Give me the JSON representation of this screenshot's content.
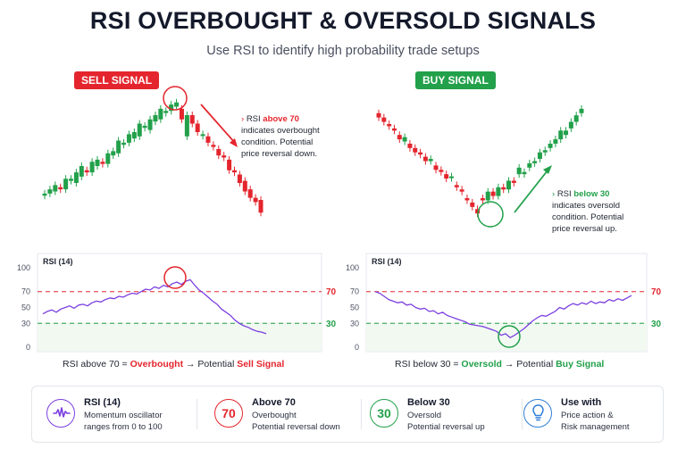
{
  "header": {
    "title": "RSI OVERBOUGHT & OVERSOLD SIGNALS",
    "subtitle": "Use RSI to identify high probability trade setups"
  },
  "colors": {
    "red": "#e4252d",
    "green": "#22a04a",
    "rsi_line": "#7b3fe0",
    "blue": "#2f7fd8"
  },
  "sell_panel": {
    "badge": "SELL SIGNAL",
    "note": {
      "prefix": "RSI ",
      "highlight": "above 70",
      "line2": "indicates overbought",
      "line3": "condition. Potential",
      "line4": "price reversal down."
    },
    "caption": {
      "prefix": "RSI above 70 = ",
      "word": "Overbought",
      "mid": " → Potential ",
      "signal": "Sell Signal"
    }
  },
  "buy_panel": {
    "badge": "BUY SIGNAL",
    "note": {
      "prefix": "RSI ",
      "highlight": "below 30",
      "line2": "indicates oversold",
      "line3": "condition. Potential",
      "line4": "price reversal up."
    },
    "caption": {
      "prefix": "RSI below 30 = ",
      "word": "Oversold",
      "mid": " → Potential ",
      "signal": "Buy Signal"
    }
  },
  "legend": [
    {
      "icon": "wave-icon",
      "title": "RSI (14)",
      "line1": "Momentum oscillator",
      "line2": "ranges from 0 to 100"
    },
    {
      "icon_text": "70",
      "title": "Above 70",
      "line1": "Overbought",
      "line2": "Potential reversal down"
    },
    {
      "icon_text": "30",
      "title": "Below 30",
      "line1": "Oversold",
      "line2": "Potential reversal up"
    },
    {
      "icon": "lightbulb-icon",
      "title": "Use with",
      "line1": "Price action &",
      "line2": "Risk management"
    }
  ],
  "chart_data": [
    {
      "type": "candlestick",
      "panel": "sell",
      "open": [
        2,
        3,
        4,
        6,
        5,
        9,
        8,
        11,
        14,
        13,
        16,
        18,
        17,
        21,
        22,
        26,
        27,
        29,
        30,
        34,
        33,
        37,
        38,
        41,
        42,
        44,
        43,
        30,
        40,
        36,
        31,
        30,
        26,
        24,
        21,
        19,
        14,
        12,
        9,
        5,
        1,
        0
      ],
      "close": [
        3,
        5,
        7,
        5,
        10,
        10,
        13,
        16,
        13,
        18,
        19,
        17,
        22,
        23,
        28,
        27,
        31,
        32,
        36,
        35,
        38,
        40,
        43,
        42,
        45,
        46,
        38,
        40,
        36,
        32,
        31,
        27,
        25,
        21,
        20,
        14,
        13,
        8,
        4,
        1,
        -1,
        -6
      ]
    },
    {
      "type": "line",
      "title": "RSI (14)",
      "panel": "sell",
      "ylim": [
        0,
        100
      ],
      "yticks": [
        0,
        30,
        50,
        70,
        100
      ],
      "levels": [
        {
          "value": 70,
          "label": "70"
        },
        {
          "value": 30,
          "label": "30"
        }
      ],
      "values": [
        42,
        45,
        47,
        44,
        48,
        50,
        52,
        49,
        53,
        54,
        52,
        56,
        58,
        57,
        60,
        62,
        61,
        64,
        63,
        66,
        68,
        67,
        70,
        73,
        72,
        76,
        74,
        78,
        76,
        80,
        82,
        79,
        83,
        85,
        78,
        72,
        68,
        63,
        58,
        54,
        48,
        44,
        40,
        34,
        30,
        27,
        25,
        22,
        20,
        19,
        17
      ]
    },
    {
      "type": "candlestick",
      "panel": "buy",
      "open": [
        44,
        42,
        39,
        37,
        34,
        31,
        30,
        28,
        26,
        24,
        22,
        20,
        18,
        16,
        15,
        11,
        9,
        5,
        3,
        0,
        5,
        4,
        8,
        6,
        10,
        9,
        13,
        16,
        16,
        19,
        21,
        23,
        26,
        28,
        30,
        32,
        34,
        37,
        40,
        44
      ],
      "close": [
        42,
        40,
        38,
        36,
        32,
        33,
        28,
        26,
        25,
        22,
        23,
        18,
        17,
        14,
        15,
        10,
        8,
        4,
        1,
        -2,
        4,
        8,
        6,
        10,
        9,
        13,
        12,
        19,
        17,
        21,
        22,
        26,
        27,
        30,
        32,
        36,
        36,
        40,
        43,
        46
      ]
    },
    {
      "type": "line",
      "title": "RSI (14)",
      "panel": "buy",
      "ylim": [
        0,
        100
      ],
      "yticks": [
        0,
        30,
        50,
        70,
        100
      ],
      "levels": [
        {
          "value": 70,
          "label": "70"
        },
        {
          "value": 30,
          "label": "30"
        }
      ],
      "values": [
        70,
        68,
        64,
        60,
        58,
        56,
        57,
        53,
        54,
        50,
        48,
        49,
        45,
        46,
        42,
        44,
        40,
        38,
        36,
        34,
        32,
        29,
        28,
        27,
        26,
        24,
        22,
        20,
        15,
        17,
        12,
        15,
        19,
        23,
        28,
        33,
        37,
        40,
        39,
        42,
        45,
        50,
        48,
        52,
        55,
        53,
        56,
        54,
        58,
        55,
        57,
        56,
        60,
        58,
        61,
        59,
        62,
        65
      ]
    }
  ]
}
